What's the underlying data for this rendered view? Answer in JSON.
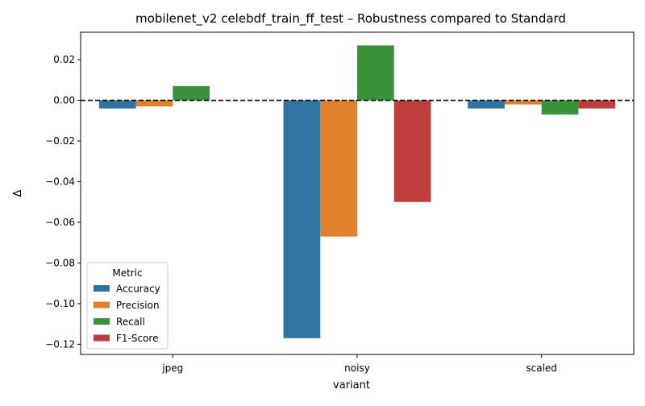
{
  "chart_data": {
    "type": "bar",
    "title": "mobilenet_v2 celebdf_train_ff_test – Robustness compared to Standard",
    "xlabel": "variant",
    "ylabel": "Δ",
    "categories": [
      "jpeg",
      "noisy",
      "scaled"
    ],
    "series": [
      {
        "name": "Accuracy",
        "color": "#3274a1",
        "values": [
          -0.004,
          -0.117,
          -0.004
        ]
      },
      {
        "name": "Precision",
        "color": "#e1812c",
        "values": [
          -0.003,
          -0.067,
          -0.002
        ]
      },
      {
        "name": "Recall",
        "color": "#3a923a",
        "values": [
          0.007,
          0.027,
          -0.007
        ]
      },
      {
        "name": "F1-Score",
        "color": "#c03d3e",
        "values": [
          0.0,
          -0.05,
          -0.004
        ]
      }
    ],
    "ylim": [
      -0.125,
      0.0335
    ],
    "yticks": [
      0.02,
      0.0,
      -0.02,
      -0.04,
      -0.06,
      -0.08,
      -0.1,
      -0.12
    ],
    "ytick_labels": [
      "0.02",
      "0.00",
      "−0.02",
      "−0.04",
      "−0.06",
      "−0.08",
      "−0.10",
      "−0.12"
    ],
    "reference_line": {
      "y": 0,
      "style": "dashed",
      "color": "#000000"
    },
    "legend": {
      "title": "Metric",
      "placement": "lower-left"
    },
    "grid": false
  }
}
